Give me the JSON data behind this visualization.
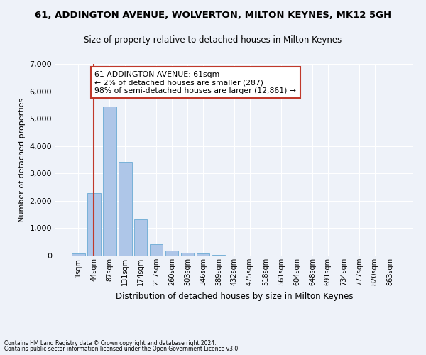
{
  "title1": "61, ADDINGTON AVENUE, WOLVERTON, MILTON KEYNES, MK12 5GH",
  "title2": "Size of property relative to detached houses in Milton Keynes",
  "xlabel": "Distribution of detached houses by size in Milton Keynes",
  "ylabel": "Number of detached properties",
  "footnote1": "Contains HM Land Registry data © Crown copyright and database right 2024.",
  "footnote2": "Contains public sector information licensed under the Open Government Licence v3.0.",
  "bar_labels": [
    "1sqm",
    "44sqm",
    "87sqm",
    "131sqm",
    "174sqm",
    "217sqm",
    "260sqm",
    "303sqm",
    "346sqm",
    "389sqm",
    "432sqm",
    "475sqm",
    "518sqm",
    "561sqm",
    "604sqm",
    "648sqm",
    "691sqm",
    "734sqm",
    "777sqm",
    "820sqm",
    "863sqm"
  ],
  "bar_values": [
    75,
    2280,
    5450,
    3430,
    1310,
    420,
    175,
    110,
    65,
    35,
    0,
    0,
    0,
    0,
    0,
    0,
    0,
    0,
    0,
    0,
    0
  ],
  "bar_color": "#aec6e8",
  "bar_edge_color": "#6aaad4",
  "ylim": [
    0,
    7000
  ],
  "yticks": [
    0,
    1000,
    2000,
    3000,
    4000,
    5000,
    6000,
    7000
  ],
  "vline_color": "#c0392b",
  "annotation_text": "61 ADDINGTON AVENUE: 61sqm\n← 2% of detached houses are smaller (287)\n98% of semi-detached houses are larger (12,861) →",
  "bg_color": "#eef2f9"
}
